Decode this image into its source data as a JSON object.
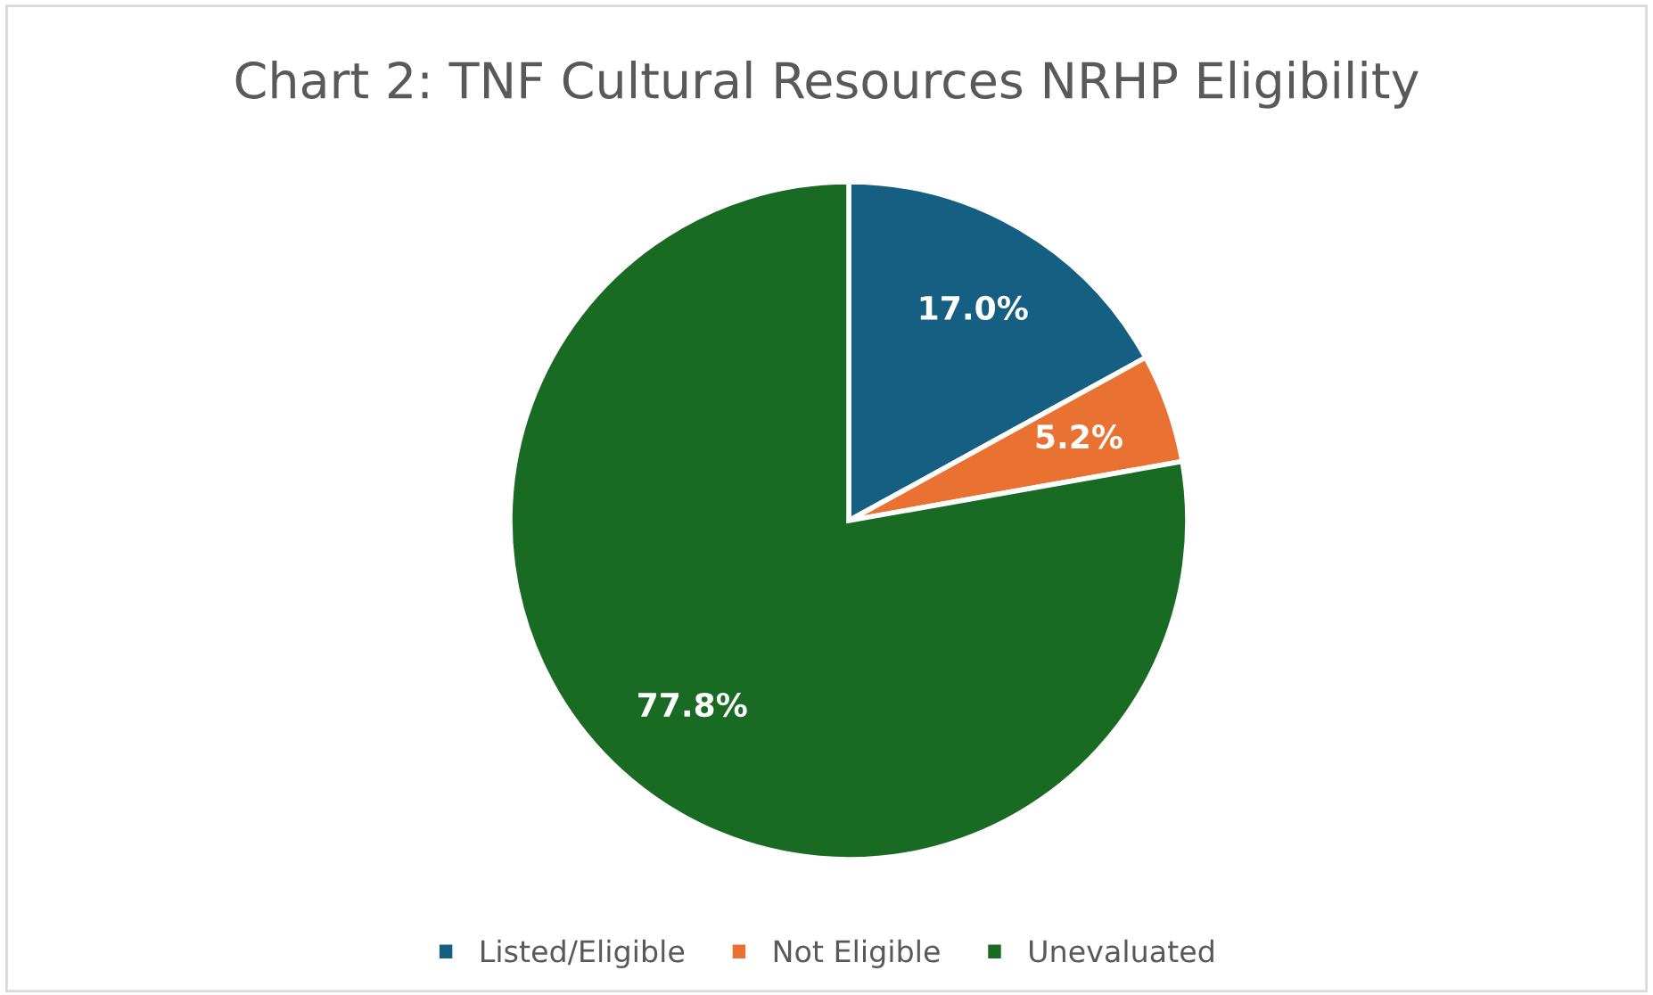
{
  "chart_data": {
    "type": "pie",
    "title": "Chart 2: TNF Cultural Resources NRHP Eligibility",
    "categories": [
      "Listed/Eligible",
      "Not Eligible",
      "Unevaluated"
    ],
    "values": [
      17.0,
      5.2,
      77.8
    ],
    "colors": [
      "#156082",
      "#e97132",
      "#196b24"
    ],
    "value_labels": [
      "17.0%",
      "5.2%",
      "77.8%"
    ],
    "legend": "bottom"
  }
}
